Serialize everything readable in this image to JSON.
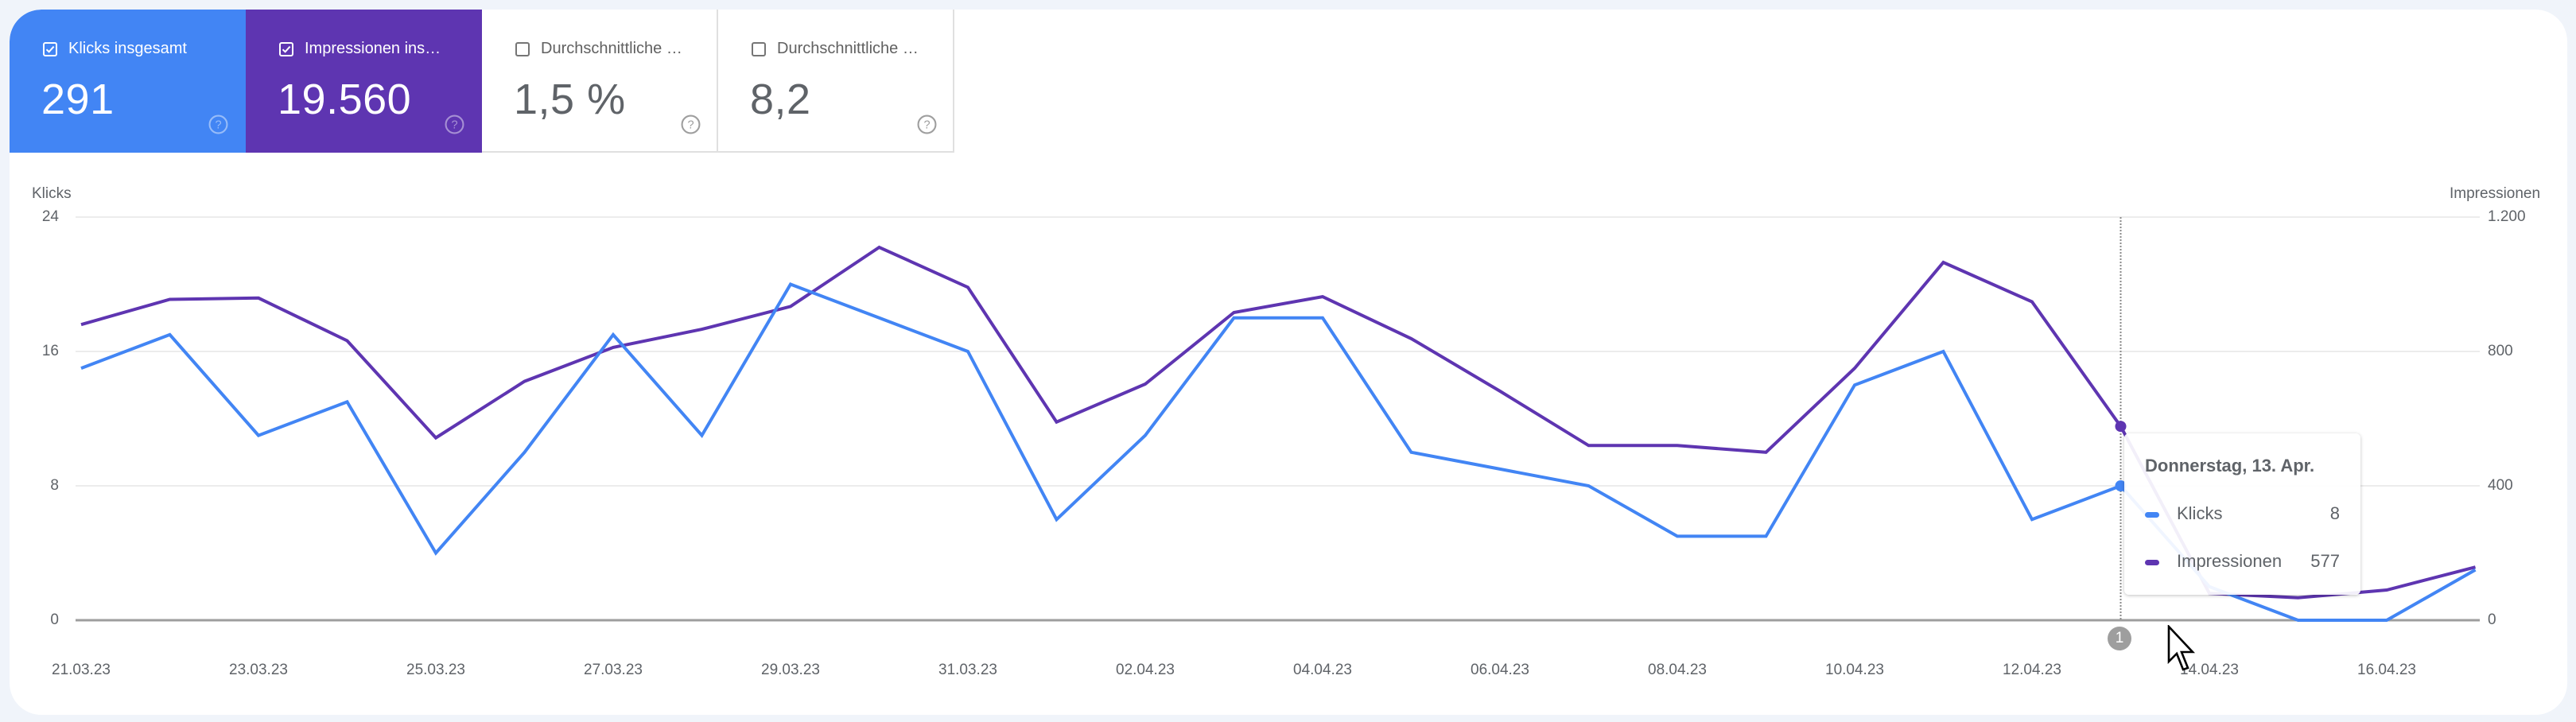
{
  "metrics": [
    {
      "label": "Klicks insgesamt",
      "value": "291",
      "checked": true,
      "color": "#4285f4"
    },
    {
      "label": "Impressionen ins…",
      "value": "19.560",
      "checked": true,
      "color": "#5e35b1"
    },
    {
      "label": "Durchschnittliche …",
      "value": "1,5 %",
      "checked": false
    },
    {
      "label": "Durchschnittliche …",
      "value": "8,2",
      "checked": false
    }
  ],
  "chart": {
    "left_axis_title": "Klicks",
    "right_axis_title": "Impressionen",
    "left_ticks": [
      "24",
      "16",
      "8",
      "0"
    ],
    "right_ticks": [
      "1.200",
      "800",
      "400",
      "0"
    ],
    "x_labels": [
      "21.03.23",
      "23.03.23",
      "25.03.23",
      "27.03.23",
      "29.03.23",
      "31.03.23",
      "02.04.23",
      "04.04.23",
      "06.04.23",
      "08.04.23",
      "10.04.23",
      "12.04.23",
      "14.04.23",
      "16.04.23"
    ],
    "annotation_marker": "1"
  },
  "tooltip": {
    "title": "Donnerstag, 13. Apr.",
    "rows": [
      {
        "name": "Klicks",
        "value": "8",
        "color": "#4285f4"
      },
      {
        "name": "Impressionen",
        "value": "577",
        "color": "#5e35b1"
      }
    ]
  },
  "chart_data": {
    "type": "line",
    "title": "",
    "xlabel": "",
    "ylabel": "Klicks",
    "ylabel_right": "Impressionen",
    "ylim": [
      0,
      24
    ],
    "ylim_right": [
      0,
      1200
    ],
    "grid": true,
    "x": [
      "21.03.23",
      "22.03.23",
      "23.03.23",
      "24.03.23",
      "25.03.23",
      "26.03.23",
      "27.03.23",
      "28.03.23",
      "29.03.23",
      "30.03.23",
      "31.03.23",
      "01.04.23",
      "02.04.23",
      "03.04.23",
      "04.04.23",
      "05.04.23",
      "06.04.23",
      "07.04.23",
      "08.04.23",
      "09.04.23",
      "10.04.23",
      "11.04.23",
      "12.04.23",
      "13.04.23",
      "14.04.23",
      "15.04.23",
      "16.04.23",
      "17.04.23"
    ],
    "series": [
      {
        "name": "Klicks",
        "axis": "left",
        "color": "#4285f4",
        "values": [
          15,
          17,
          11,
          13,
          4,
          10,
          17,
          11,
          20,
          18,
          16,
          6,
          11,
          18,
          18,
          10,
          9,
          8,
          5,
          5,
          14,
          16,
          6,
          8,
          2,
          0,
          0,
          3
        ]
      },
      {
        "name": "Impressionen",
        "axis": "right",
        "color": "#5e35b1",
        "values": [
          880,
          955,
          959,
          832,
          543,
          711,
          812,
          866,
          934,
          1110,
          991,
          590,
          703,
          916,
          963,
          838,
          682,
          520,
          520,
          500,
          750,
          1065,
          948,
          577,
          80,
          67,
          90,
          158
        ]
      }
    ],
    "highlight": {
      "x": "13.04.23",
      "Klicks": 8,
      "Impressionen": 577
    }
  }
}
